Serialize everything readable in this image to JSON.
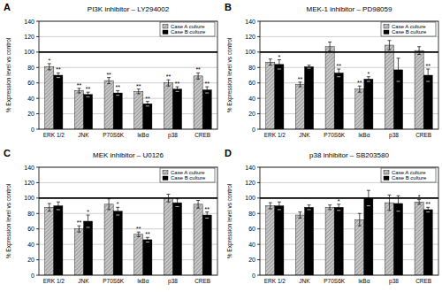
{
  "chart_data": [
    {
      "type": "bar",
      "panel": "A",
      "title": "PI3K inhibitor – LY294002",
      "y_label": "% Expression level vs control",
      "categories": [
        "ERK 1/2",
        "JNK",
        "P70S6K",
        "IκBα",
        "p38",
        "CREB"
      ],
      "series": [
        {
          "name": "Case A culture",
          "color": "#c8c8c8",
          "values": [
            81,
            50,
            63,
            49,
            60,
            69
          ],
          "errors": [
            4,
            3,
            4,
            3,
            4,
            4
          ],
          "significance": [
            "*",
            "**",
            "**",
            "**",
            "**",
            "**"
          ]
        },
        {
          "name": "Case B culture",
          "color": "#000000",
          "values": [
            70,
            45,
            47,
            33,
            52,
            51
          ],
          "errors": [
            3,
            3,
            3,
            3,
            3,
            4
          ],
          "significance": [
            "**",
            "**",
            "**",
            "**",
            "**",
            "**"
          ]
        }
      ],
      "ylim": [
        0,
        140
      ],
      "yticks": [
        0,
        20,
        40,
        60,
        80,
        100,
        120,
        140
      ],
      "grid": true,
      "legend": "upper right",
      "reference_line": 100
    },
    {
      "type": "bar",
      "panel": "B",
      "title": "MEK-1 inhibitor – PD98059",
      "y_label": "% Expression level vs control",
      "categories": [
        "ERK 1/2",
        "JNK",
        "P70S6K",
        "IκBα",
        "p38",
        "CREB"
      ],
      "series": [
        {
          "name": "Case A culture",
          "color": "#c8c8c8",
          "values": [
            87,
            58,
            107,
            52,
            109,
            102
          ],
          "errors": [
            4,
            3,
            6,
            4,
            6,
            5
          ],
          "significance": [
            null,
            "**",
            null,
            "**",
            null,
            null
          ]
        },
        {
          "name": "Case B culture",
          "color": "#000000",
          "values": [
            84,
            81,
            73,
            65,
            77,
            70
          ],
          "errors": [
            6,
            2,
            5,
            3,
            15,
            8
          ],
          "significance": [
            "*",
            null,
            "**",
            "*",
            null,
            "**"
          ]
        }
      ],
      "ylim": [
        0,
        140
      ],
      "yticks": [
        0,
        20,
        40,
        60,
        80,
        100,
        120,
        140
      ],
      "grid": true,
      "legend": "upper right",
      "reference_line": 100
    },
    {
      "type": "bar",
      "panel": "C",
      "title": "MEK inhibitor – U0126",
      "y_label": "% Expression level vs control",
      "categories": [
        "ERK 1/2",
        "JNK",
        "P70S6K",
        "IκBα",
        "p38",
        "CREB"
      ],
      "series": [
        {
          "name": "Case A culture",
          "color": "#c8c8c8",
          "values": [
            88,
            60,
            92,
            53,
            100,
            92
          ],
          "errors": [
            5,
            4,
            7,
            3,
            5,
            5
          ],
          "significance": [
            null,
            "**",
            null,
            "**",
            null,
            null
          ]
        },
        {
          "name": "Case B culture",
          "color": "#000000",
          "values": [
            90,
            70,
            83,
            46,
            94,
            78
          ],
          "errors": [
            5,
            8,
            5,
            3,
            5,
            4
          ],
          "significance": [
            null,
            "*",
            "*",
            "**",
            null,
            "**"
          ]
        }
      ],
      "ylim": [
        0,
        140
      ],
      "yticks": [
        0,
        20,
        40,
        60,
        80,
        100,
        120,
        140
      ],
      "grid": true,
      "legend": "upper right",
      "reference_line": 100
    },
    {
      "type": "bar",
      "panel": "D",
      "title": "p38 inhibitor – SB203580",
      "y_label": "% Expression level vs control",
      "categories": [
        "ERK 1/2",
        "JNK",
        "P70S6K",
        "IκBα",
        "p38",
        "CREB"
      ],
      "series": [
        {
          "name": "Case A culture",
          "color": "#c8c8c8",
          "values": [
            90,
            78,
            88,
            72,
            94,
            95
          ],
          "errors": [
            4,
            4,
            3,
            8,
            10,
            3
          ],
          "significance": [
            null,
            null,
            null,
            null,
            null,
            "*"
          ]
        },
        {
          "name": "Case B culture",
          "color": "#000000",
          "values": [
            90,
            88,
            88,
            100,
            93,
            85
          ],
          "errors": [
            5,
            3,
            4,
            10,
            10,
            3
          ],
          "significance": [
            null,
            null,
            "*",
            null,
            null,
            "**"
          ]
        }
      ],
      "ylim": [
        0,
        140
      ],
      "yticks": [
        0,
        20,
        40,
        60,
        80,
        100,
        120,
        140
      ],
      "grid": true,
      "legend": "upper right",
      "reference_line": 100
    }
  ]
}
